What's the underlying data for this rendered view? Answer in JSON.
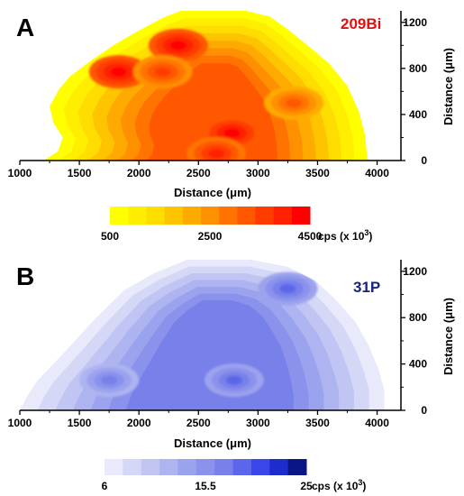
{
  "chart_data": [
    {
      "type": "heatmap",
      "panel_label": "A",
      "element_label": "209Bi",
      "element_color": "#e01010",
      "xlabel": "Distance (μm)",
      "ylabel": "Distance (μm)",
      "xlim": [
        1000,
        4200
      ],
      "ylim": [
        0,
        1300
      ],
      "xticks": [
        1000,
        1500,
        2000,
        2500,
        3000,
        3500,
        4000
      ],
      "yticks": [
        0,
        400,
        800,
        1200
      ],
      "colorbar": {
        "colors": [
          "#ffff00",
          "#ffee00",
          "#ffdd00",
          "#ffc400",
          "#ffaa00",
          "#ff9000",
          "#ff7400",
          "#ff5800",
          "#ff3c00",
          "#ff2000",
          "#ff0000"
        ],
        "tick_labels": [
          "500",
          "2500",
          "4500"
        ],
        "unit_prefix": "cps (x 10",
        "unit_exp": "3",
        "unit_suffix": ")"
      },
      "hotspots": [
        {
          "x": 2330,
          "y": 1000,
          "level": 10
        },
        {
          "x": 1830,
          "y": 770,
          "level": 10
        },
        {
          "x": 2780,
          "y": 240,
          "level": 10
        },
        {
          "x": 2650,
          "y": 60,
          "level": 9
        },
        {
          "x": 2200,
          "y": 770,
          "level": 8
        },
        {
          "x": 3300,
          "y": 500,
          "level": 7
        }
      ]
    },
    {
      "type": "heatmap",
      "panel_label": "B",
      "element_label": "31P",
      "element_color": "#1a237e",
      "xlabel": "Distance (μm)",
      "ylabel": "Distance (μm)",
      "xlim": [
        1000,
        4200
      ],
      "ylim": [
        0,
        1300
      ],
      "xticks": [
        1000,
        1500,
        2000,
        2500,
        3000,
        3500,
        4000
      ],
      "yticks": [
        0,
        400,
        800,
        1200
      ],
      "colorbar": {
        "colors": [
          "#e8eafb",
          "#d4d8f6",
          "#c0c5f3",
          "#aeb4f0",
          "#9ca3ee",
          "#8a92ec",
          "#7880ea",
          "#5c66ea",
          "#3a46ea",
          "#1f2ccc",
          "#0a1686"
        ],
        "tick_labels": [
          "6",
          "15.5",
          "25"
        ],
        "unit_prefix": "cps (x 10",
        "unit_exp": "3",
        "unit_suffix": ")"
      },
      "hotspots": [
        {
          "x": 2800,
          "y": 260,
          "level": 7
        },
        {
          "x": 3250,
          "y": 1050,
          "level": 7
        },
        {
          "x": 1750,
          "y": 260,
          "level": 6
        }
      ]
    }
  ]
}
